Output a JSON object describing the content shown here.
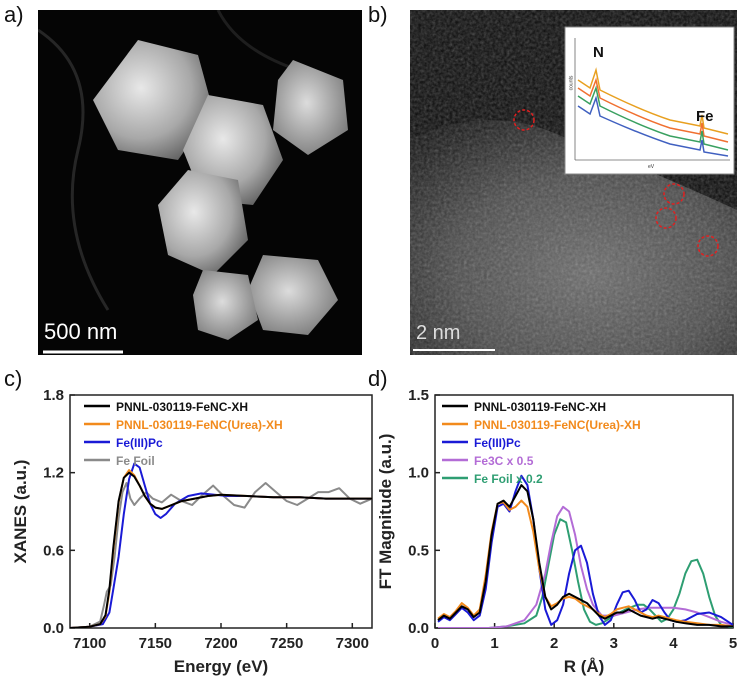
{
  "panels": {
    "a": {
      "label": "a)",
      "scale_bar": "500 nm"
    },
    "b": {
      "label": "b)",
      "scale_bar": "2 nm",
      "inset": {
        "labels": [
          "N",
          "Fe"
        ],
        "xlabel": "eV",
        "ylabel": "counts"
      }
    },
    "c": {
      "label": "c)"
    },
    "d": {
      "label": "d)"
    }
  },
  "chart_data": [
    {
      "type": "line",
      "xlabel": "Energy (eV)",
      "ylabel": "XANES (a.u.)",
      "xlim": [
        7085,
        7315
      ],
      "ylim": [
        0.0,
        1.8
      ],
      "xticks": [
        7100,
        7150,
        7200,
        7250,
        7300
      ],
      "yticks": [
        0.0,
        0.6,
        1.2,
        1.8
      ],
      "ytick_labels": [
        "0.0",
        "0.6",
        "1.2",
        "1.8"
      ],
      "legend_position": "top-left",
      "series": [
        {
          "name": "PNNL-030119-FeNC-XH",
          "color": "#000000",
          "x": [
            7085,
            7100,
            7108,
            7112,
            7115,
            7118,
            7122,
            7126,
            7130,
            7134,
            7138,
            7142,
            7146,
            7150,
            7155,
            7160,
            7170,
            7180,
            7190,
            7200,
            7220,
            7240,
            7260,
            7280,
            7300,
            7315
          ],
          "y": [
            0.0,
            0.01,
            0.03,
            0.1,
            0.3,
            0.62,
            0.98,
            1.16,
            1.2,
            1.17,
            1.1,
            1.02,
            0.96,
            0.93,
            0.92,
            0.94,
            0.98,
            1.0,
            1.02,
            1.03,
            1.02,
            1.01,
            1.01,
            1.0,
            1.0,
            1.0
          ]
        },
        {
          "name": "PNNL-030119-FeNC(Urea)-XH",
          "color": "#f28a1c",
          "x": [
            7085,
            7100,
            7108,
            7112,
            7115,
            7118,
            7122,
            7126,
            7130,
            7134,
            7138,
            7142,
            7146,
            7150,
            7155,
            7160,
            7170,
            7180,
            7190,
            7200,
            7220,
            7240,
            7260,
            7280,
            7300,
            7315
          ],
          "y": [
            0.0,
            0.01,
            0.03,
            0.09,
            0.28,
            0.6,
            0.97,
            1.16,
            1.22,
            1.18,
            1.1,
            1.02,
            0.96,
            0.93,
            0.92,
            0.94,
            0.98,
            1.0,
            1.02,
            1.03,
            1.02,
            1.01,
            1.01,
            1.0,
            1.0,
            1.0
          ]
        },
        {
          "name": "Fe(III)Pc",
          "color": "#1a1ad6",
          "x": [
            7085,
            7100,
            7110,
            7115,
            7118,
            7122,
            7126,
            7130,
            7134,
            7138,
            7142,
            7146,
            7150,
            7154,
            7158,
            7165,
            7175,
            7185,
            7195,
            7205,
            7220,
            7240,
            7260,
            7280,
            7300,
            7315
          ],
          "y": [
            0.0,
            0.01,
            0.03,
            0.12,
            0.3,
            0.55,
            0.88,
            1.15,
            1.27,
            1.24,
            1.1,
            0.96,
            0.88,
            0.85,
            0.88,
            0.96,
            1.02,
            1.04,
            1.03,
            1.02,
            1.02,
            1.01,
            1.01,
            1.0,
            1.0,
            1.0
          ]
        },
        {
          "name": "Fe Foil",
          "color": "#8a8a8a",
          "x": [
            7085,
            7100,
            7108,
            7111,
            7113,
            7116,
            7119,
            7122,
            7125,
            7128,
            7131,
            7134,
            7138,
            7143,
            7148,
            7155,
            7162,
            7170,
            7178,
            7186,
            7194,
            7202,
            7210,
            7218,
            7226,
            7234,
            7242,
            7250,
            7258,
            7266,
            7274,
            7282,
            7290,
            7298,
            7306,
            7315
          ],
          "y": [
            0.0,
            0.01,
            0.05,
            0.18,
            0.28,
            0.33,
            0.55,
            0.85,
            1.05,
            1.12,
            1.0,
            0.95,
            1.0,
            1.05,
            1.0,
            0.97,
            1.03,
            0.98,
            0.95,
            1.03,
            1.1,
            1.02,
            0.95,
            0.93,
            1.05,
            1.12,
            1.05,
            0.98,
            0.95,
            1.0,
            1.05,
            1.05,
            1.08,
            1.0,
            0.96,
            1.0
          ]
        }
      ]
    },
    {
      "type": "line",
      "xlabel": "R (Å)",
      "ylabel": "FT Magnitude (a.u.)",
      "xlim": [
        0,
        5
      ],
      "ylim": [
        0.0,
        1.5
      ],
      "xticks": [
        0,
        1,
        2,
        3,
        4,
        5
      ],
      "yticks": [
        0.0,
        0.5,
        1.0,
        1.5
      ],
      "ytick_labels": [
        "0.0",
        "0.5",
        "1.0",
        "1.5"
      ],
      "legend_position": "top-left",
      "series": [
        {
          "name": "PNNL-030119-FeNC-XH",
          "color": "#000000",
          "x": [
            0.05,
            0.15,
            0.25,
            0.35,
            0.45,
            0.55,
            0.65,
            0.75,
            0.85,
            0.95,
            1.05,
            1.15,
            1.25,
            1.35,
            1.45,
            1.55,
            1.65,
            1.75,
            1.85,
            1.95,
            2.05,
            2.15,
            2.25,
            2.35,
            2.45,
            2.55,
            2.65,
            2.75,
            2.85,
            2.95,
            3.05,
            3.15,
            3.25,
            3.35,
            3.45,
            3.55,
            3.65,
            3.75,
            3.85,
            3.95,
            4.05,
            4.2,
            4.4,
            4.6,
            4.8,
            5.0
          ],
          "y": [
            0.05,
            0.08,
            0.06,
            0.1,
            0.14,
            0.12,
            0.07,
            0.1,
            0.3,
            0.6,
            0.8,
            0.82,
            0.78,
            0.85,
            0.92,
            0.88,
            0.7,
            0.42,
            0.2,
            0.12,
            0.15,
            0.2,
            0.22,
            0.2,
            0.18,
            0.16,
            0.12,
            0.08,
            0.06,
            0.08,
            0.1,
            0.1,
            0.12,
            0.1,
            0.08,
            0.07,
            0.06,
            0.07,
            0.06,
            0.05,
            0.04,
            0.03,
            0.02,
            0.02,
            0.01,
            0.01
          ]
        },
        {
          "name": "PNNL-030119-FeNC(Urea)-XH",
          "color": "#f28a1c",
          "x": [
            0.05,
            0.15,
            0.25,
            0.35,
            0.45,
            0.55,
            0.65,
            0.75,
            0.85,
            0.95,
            1.05,
            1.15,
            1.25,
            1.35,
            1.45,
            1.55,
            1.65,
            1.75,
            1.85,
            1.95,
            2.05,
            2.15,
            2.25,
            2.35,
            2.45,
            2.55,
            2.65,
            2.75,
            2.85,
            2.95,
            3.05,
            3.15,
            3.25,
            3.35,
            3.45,
            3.55,
            3.65,
            3.75,
            3.85,
            3.95,
            4.05,
            4.2,
            4.4,
            4.6,
            4.8,
            5.0
          ],
          "y": [
            0.06,
            0.09,
            0.07,
            0.11,
            0.16,
            0.13,
            0.08,
            0.12,
            0.34,
            0.62,
            0.8,
            0.81,
            0.76,
            0.78,
            0.82,
            0.78,
            0.62,
            0.38,
            0.2,
            0.14,
            0.16,
            0.19,
            0.2,
            0.19,
            0.16,
            0.14,
            0.12,
            0.09,
            0.07,
            0.09,
            0.12,
            0.13,
            0.14,
            0.12,
            0.1,
            0.08,
            0.07,
            0.08,
            0.07,
            0.06,
            0.05,
            0.04,
            0.03,
            0.02,
            0.02,
            0.01
          ]
        },
        {
          "name": "Fe(III)Pc",
          "color": "#1a1ad6",
          "x": [
            0.05,
            0.15,
            0.25,
            0.35,
            0.45,
            0.55,
            0.65,
            0.75,
            0.85,
            0.95,
            1.05,
            1.15,
            1.25,
            1.35,
            1.45,
            1.55,
            1.65,
            1.75,
            1.85,
            1.95,
            2.05,
            2.15,
            2.25,
            2.35,
            2.45,
            2.55,
            2.65,
            2.75,
            2.85,
            2.95,
            3.05,
            3.15,
            3.25,
            3.35,
            3.45,
            3.55,
            3.65,
            3.75,
            3.85,
            3.95,
            4.05,
            4.2,
            4.4,
            4.6,
            4.8,
            5.0
          ],
          "y": [
            0.04,
            0.07,
            0.05,
            0.09,
            0.13,
            0.1,
            0.05,
            0.08,
            0.25,
            0.55,
            0.78,
            0.8,
            0.75,
            0.88,
            0.98,
            0.92,
            0.7,
            0.38,
            0.12,
            0.02,
            0.05,
            0.15,
            0.35,
            0.5,
            0.53,
            0.42,
            0.22,
            0.08,
            0.02,
            0.05,
            0.15,
            0.23,
            0.24,
            0.18,
            0.1,
            0.12,
            0.18,
            0.16,
            0.1,
            0.05,
            0.04,
            0.05,
            0.09,
            0.1,
            0.07,
            0.02
          ]
        },
        {
          "name": "Fe3C x 0.5",
          "color": "#b36cd6",
          "x": [
            0.05,
            0.3,
            0.6,
            0.9,
            1.2,
            1.5,
            1.7,
            1.85,
            1.95,
            2.05,
            2.15,
            2.25,
            2.35,
            2.45,
            2.55,
            2.65,
            2.8,
            3.0,
            3.2,
            3.4,
            3.6,
            3.8,
            4.0,
            4.2,
            4.4,
            4.6,
            4.8,
            5.0
          ],
          "y": [
            0.0,
            0.0,
            0.0,
            0.0,
            0.01,
            0.05,
            0.15,
            0.35,
            0.55,
            0.72,
            0.78,
            0.75,
            0.6,
            0.4,
            0.25,
            0.15,
            0.08,
            0.08,
            0.1,
            0.12,
            0.13,
            0.13,
            0.13,
            0.12,
            0.1,
            0.07,
            0.04,
            0.02
          ]
        },
        {
          "name": "Fe Foil x 0.2",
          "color": "#2e9e72",
          "x": [
            0.05,
            0.3,
            0.6,
            0.9,
            1.2,
            1.5,
            1.7,
            1.8,
            1.9,
            2.0,
            2.1,
            2.2,
            2.3,
            2.4,
            2.5,
            2.6,
            2.7,
            2.8,
            3.0,
            3.2,
            3.4,
            3.5,
            3.6,
            3.7,
            3.8,
            3.9,
            4.0,
            4.1,
            4.2,
            4.3,
            4.4,
            4.5,
            4.6,
            4.7,
            4.8,
            4.9,
            5.0
          ],
          "y": [
            0.0,
            0.0,
            0.0,
            0.0,
            0.01,
            0.03,
            0.08,
            0.2,
            0.4,
            0.6,
            0.7,
            0.68,
            0.5,
            0.3,
            0.12,
            0.04,
            0.02,
            0.03,
            0.08,
            0.12,
            0.15,
            0.15,
            0.12,
            0.08,
            0.04,
            0.06,
            0.12,
            0.22,
            0.35,
            0.43,
            0.44,
            0.35,
            0.2,
            0.08,
            0.02,
            0.01,
            0.0
          ]
        }
      ]
    }
  ]
}
